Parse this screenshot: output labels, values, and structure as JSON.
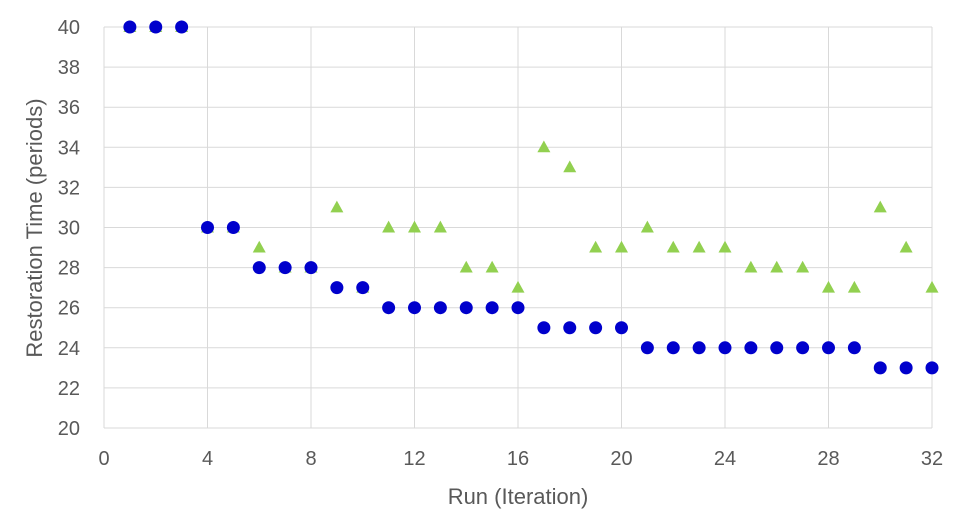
{
  "chart_data": {
    "type": "scatter",
    "xlabel": "Run (Iteration)",
    "ylabel": "Restoration Time (periods)",
    "xlim": [
      0,
      32
    ],
    "ylim": [
      20,
      40
    ],
    "xticks": [
      0,
      4,
      8,
      12,
      16,
      20,
      24,
      28,
      32
    ],
    "yticks": [
      20,
      22,
      24,
      26,
      28,
      30,
      32,
      34,
      36,
      38,
      40
    ],
    "grid": true,
    "series": [
      {
        "marker": "circle",
        "color": "#0000cc",
        "x": [
          1,
          2,
          3,
          4,
          5,
          6,
          7,
          8,
          9,
          10,
          11,
          12,
          13,
          14,
          15,
          16,
          17,
          18,
          19,
          20,
          21,
          22,
          23,
          24,
          25,
          26,
          27,
          28,
          29,
          30,
          31,
          32
        ],
        "y": [
          40,
          40,
          40,
          30,
          30,
          28,
          28,
          28,
          27,
          27,
          26,
          26,
          26,
          26,
          26,
          26,
          25,
          25,
          25,
          25,
          24,
          24,
          24,
          24,
          24,
          24,
          24,
          24,
          24,
          23,
          23,
          23
        ]
      },
      {
        "marker": "triangle",
        "color": "#92d050",
        "x": [
          1,
          2,
          3,
          4,
          5,
          6,
          7,
          8,
          9,
          10,
          11,
          12,
          13,
          14,
          15,
          16,
          17,
          18,
          19,
          20,
          21,
          22,
          23,
          24,
          25,
          26,
          27,
          28,
          29,
          30,
          31,
          32
        ],
        "y": [
          40,
          40,
          40,
          30,
          30,
          29,
          28,
          28,
          31,
          27,
          30,
          30,
          30,
          28,
          28,
          27,
          34,
          33,
          29,
          29,
          30,
          29,
          29,
          29,
          28,
          28,
          28,
          27,
          27,
          31,
          29,
          27
        ]
      }
    ]
  }
}
